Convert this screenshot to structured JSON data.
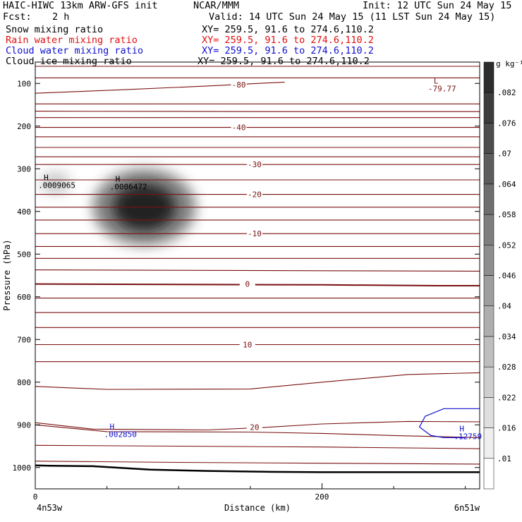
{
  "header": {
    "title": "HAIC-HIWC 13km ARW-GFS init",
    "org": "NCAR/MMM",
    "init": "Init: 12 UTC Sun 24 May 15",
    "fcst_label": "Fcst:",
    "fcst_value": "2 h",
    "valid": "Valid: 14 UTC Sun 24 May 15 (11 LST Sun 24 May 15)",
    "rows": [
      {
        "label": "Snow mixing ratio",
        "xy": "XY= 259.5, 91.6 to 274.6,110.2",
        "color": "#000000"
      },
      {
        "label": "Rain water mixing ratio",
        "xy": "XY= 259.5, 91.6 to 274.6,110.2",
        "color": "#e01010"
      },
      {
        "label": "Cloud water mixing ratio",
        "xy": "XY= 259.5, 91.6 to 274.6,110.2",
        "color": "#1010d0"
      },
      {
        "label": "Cloud ice mixing ratio",
        "xy": "XY= 259.5, 91.6 to 274.6,110.2",
        "color": "#000000"
      }
    ]
  },
  "chart_data": {
    "type": "heatmap",
    "xlabel": "Distance (km)",
    "ylabel": "Pressure (hPa)",
    "x_ticks": [
      0,
      200
    ],
    "x_endpoints": [
      "4n53w",
      "6n51w"
    ],
    "xlim": [
      0,
      310
    ],
    "ylim": [
      1050,
      50
    ],
    "y_ticks": [
      100,
      200,
      300,
      400,
      500,
      600,
      700,
      800,
      900,
      1000
    ],
    "colorbar": {
      "unit": "g kg⁻¹",
      "levels": [
        0.01,
        0.016,
        0.022,
        0.028,
        0.034,
        0.04,
        0.046,
        0.052,
        0.058,
        0.064,
        0.07,
        0.076,
        0.082
      ],
      "labels": [
        ".01",
        ".016",
        ".022",
        ".028",
        ".034",
        ".04",
        ".046",
        ".052",
        ".058",
        ".064",
        ".07",
        ".076",
        ".082"
      ]
    },
    "temperature_contours": {
      "color": "#7a1010",
      "labels": [
        {
          "text": "-80",
          "x": 142,
          "p": 103
        },
        {
          "text": "-40",
          "x": 142,
          "p": 203
        },
        {
          "text": "-30",
          "x": 153,
          "p": 290
        },
        {
          "text": "-20",
          "x": 153,
          "p": 360
        },
        {
          "text": "-10",
          "x": 153,
          "p": 452
        },
        {
          "text": "0",
          "x": 148,
          "p": 570
        },
        {
          "text": "10",
          "x": 148,
          "p": 712
        },
        {
          "text": "20",
          "x": 153,
          "p": 905
        }
      ],
      "lines": [
        {
          "x": [
            0,
            310
          ],
          "p": [
            60,
            60
          ]
        },
        {
          "x": [
            0,
            60,
            120,
            174
          ],
          "p": [
            123,
            115,
            106,
            97
          ]
        },
        {
          "x": [
            0,
            310
          ],
          "p": [
            87,
            87
          ]
        },
        {
          "x": [
            0,
            310
          ],
          "p": [
            148,
            148
          ]
        },
        {
          "x": [
            0,
            160,
            310
          ],
          "p": [
            165,
            166,
            166
          ]
        },
        {
          "x": [
            0,
            310
          ],
          "p": [
            180,
            180
          ]
        },
        {
          "x": [
            0,
            310
          ],
          "p": [
            203,
            203
          ]
        },
        {
          "x": [
            0,
            310
          ],
          "p": [
            225,
            225
          ]
        },
        {
          "x": [
            0,
            310
          ],
          "p": [
            250,
            250
          ]
        },
        {
          "x": [
            0,
            310
          ],
          "p": [
            272,
            272
          ]
        },
        {
          "x": [
            0,
            310
          ],
          "p": [
            290,
            290
          ]
        },
        {
          "x": [
            0,
            310
          ],
          "p": [
            326,
            326
          ]
        },
        {
          "x": [
            0,
            310
          ],
          "p": [
            360,
            360
          ]
        },
        {
          "x": [
            0,
            310
          ],
          "p": [
            390,
            390
          ]
        },
        {
          "x": [
            0,
            310
          ],
          "p": [
            420,
            420
          ]
        },
        {
          "x": [
            0,
            310
          ],
          "p": [
            452,
            452
          ]
        },
        {
          "x": [
            0,
            310
          ],
          "p": [
            482,
            482
          ]
        },
        {
          "x": [
            0,
            310
          ],
          "p": [
            510,
            510
          ]
        },
        {
          "x": [
            0,
            100,
            200,
            310
          ],
          "p": [
            537,
            538,
            539,
            540
          ]
        },
        {
          "x": [
            0,
            100,
            200,
            280,
            310
          ],
          "p": [
            570,
            571,
            572,
            574,
            574
          ]
        },
        {
          "x": [
            0,
            310
          ],
          "p": [
            603,
            603
          ]
        },
        {
          "x": [
            0,
            310
          ],
          "p": [
            637,
            637
          ]
        },
        {
          "x": [
            0,
            310
          ],
          "p": [
            672,
            672
          ]
        },
        {
          "x": [
            0,
            310
          ],
          "p": [
            712,
            712
          ]
        },
        {
          "x": [
            0,
            310
          ],
          "p": [
            752,
            752
          ]
        },
        {
          "x": [
            0,
            50,
            150,
            200,
            260,
            310
          ],
          "p": [
            810,
            817,
            816,
            800,
            782,
            778
          ]
        },
        {
          "x": [
            0,
            40,
            120,
            160,
            200,
            260,
            310
          ],
          "p": [
            895,
            910,
            912,
            906,
            898,
            892,
            893
          ]
        },
        {
          "x": [
            0,
            50,
            150,
            200,
            250,
            310
          ],
          "p": [
            900,
            916,
            917,
            920,
            925,
            930
          ]
        },
        {
          "x": [
            0,
            100,
            200,
            310
          ],
          "p": [
            948,
            950,
            952,
            956
          ]
        },
        {
          "x": [
            0,
            100,
            200,
            310
          ],
          "p": [
            985,
            988,
            990,
            992
          ]
        }
      ],
      "extremes": [
        {
          "label": "L",
          "value": "-79.77",
          "x": 274,
          "p": 100
        }
      ]
    },
    "cloud_water": {
      "color": "#1010d0",
      "contour": {
        "x": [
          310,
          285,
          272,
          268,
          276,
          285,
          300
        ],
        "p": [
          862,
          862,
          880,
          905,
          925,
          930,
          930
        ]
      },
      "extremes": [
        {
          "label": "H",
          "value": ".002850",
          "x": 48,
          "p": 910
        },
        {
          "label": "H",
          "value": ".12759",
          "x": 292,
          "p": 915
        }
      ]
    },
    "snow": {
      "peak_value": 0.082,
      "blobs": [
        {
          "x": 76,
          "p": 390,
          "rx": 36,
          "rp": 90,
          "peak": 0.082
        },
        {
          "x": 14,
          "p": 333,
          "rx": 12,
          "rp": 30,
          "peak": 0.016
        }
      ],
      "extremes": [
        {
          "label": "H",
          "value": ".0009065",
          "x": 2,
          "p": 327
        },
        {
          "label": "H",
          "value": ".0006472",
          "x": 52,
          "p": 330
        }
      ]
    },
    "terrain": {
      "x": [
        0,
        10,
        40,
        80,
        120,
        160,
        200,
        250,
        310
      ],
      "p": [
        995,
        996,
        997,
        1005,
        1008,
        1010,
        1011,
        1011,
        1011
      ]
    }
  }
}
